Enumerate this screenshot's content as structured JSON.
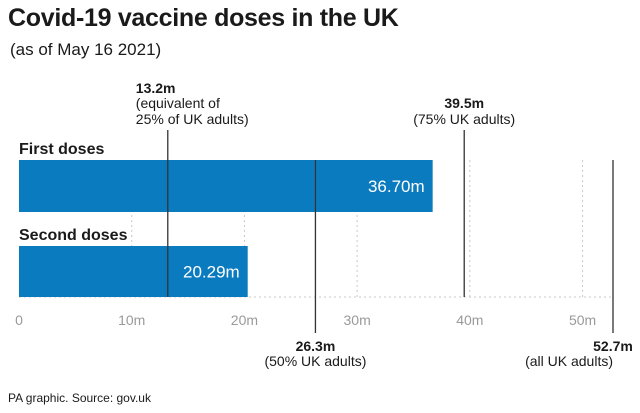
{
  "title": "Covid-19 vaccine doses in the UK",
  "subtitle": "(as of May 16 2021)",
  "source": "PA graphic. Source: gov.uk",
  "colors": {
    "bar": "#0b7bc0",
    "ref_line": "#333333",
    "grid": "#c8c8c8",
    "tick": "#9a9a9a",
    "text": "#1a1a1a"
  },
  "chart_data": {
    "type": "bar",
    "orientation": "horizontal",
    "categories": [
      "First doses",
      "Second doses"
    ],
    "values": [
      36.7,
      20.29
    ],
    "value_labels": [
      "36.70m",
      "20.29m"
    ],
    "xlim": [
      0,
      52.7
    ],
    "xticks": [
      0,
      10,
      20,
      30,
      40,
      50
    ],
    "xtick_labels": [
      "0",
      "10m",
      "20m",
      "30m",
      "40m",
      "50m"
    ],
    "grid": true,
    "reference_lines": [
      {
        "value": 13.2,
        "labels": [
          "13.2m",
          "(equivalent of",
          "25% of UK adults)"
        ],
        "position": "above"
      },
      {
        "value": 26.3,
        "labels": [
          "26.3m",
          "(50% UK adults)"
        ],
        "position": "below"
      },
      {
        "value": 39.5,
        "labels": [
          "39.5m",
          "(75% UK adults)"
        ],
        "position": "above"
      },
      {
        "value": 52.7,
        "labels": [
          "52.7m",
          "(all UK adults)"
        ],
        "position": "below"
      }
    ]
  }
}
